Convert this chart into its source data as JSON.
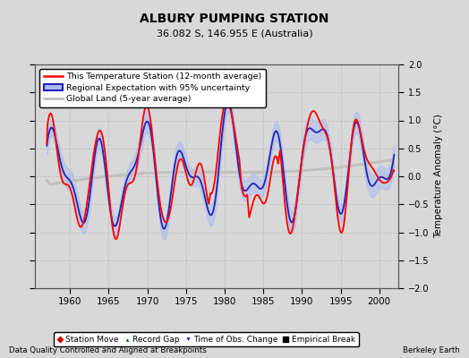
{
  "title": "ALBURY PUMPING STATION",
  "subtitle": "36.082 S, 146.955 E (Australia)",
  "ylabel": "Temperature Anomaly (°C)",
  "footer_left": "Data Quality Controlled and Aligned at Breakpoints",
  "footer_right": "Berkeley Earth",
  "xlim": [
    1955.5,
    2002.5
  ],
  "ylim": [
    -2,
    2
  ],
  "yticks": [
    -2,
    -1.5,
    -1,
    -0.5,
    0,
    0.5,
    1,
    1.5,
    2
  ],
  "xticks": [
    1960,
    1965,
    1970,
    1975,
    1980,
    1985,
    1990,
    1995,
    2000
  ],
  "background_color": "#d8d8d8",
  "plot_bg_color": "#d8d8d8",
  "grid_color": "#bbbbbb",
  "legend_items": [
    {
      "label": "This Temperature Station (12-month average)",
      "color": "#ff0000",
      "lw": 1.5
    },
    {
      "label": "Regional Expectation with 95% uncertainty",
      "color": "#2222bb",
      "lw": 1.5
    },
    {
      "label": "Global Land (5-year average)",
      "color": "#aaaaaa",
      "lw": 2.0
    }
  ],
  "bottom_legend_items": [
    {
      "label": "Station Move",
      "marker": "D",
      "color": "#cc0000"
    },
    {
      "label": "Record Gap",
      "marker": "^",
      "color": "#006600"
    },
    {
      "label": "Time of Obs. Change",
      "marker": "v",
      "color": "#0000cc"
    },
    {
      "label": "Empirical Break",
      "marker": "s",
      "color": "#000000"
    }
  ]
}
